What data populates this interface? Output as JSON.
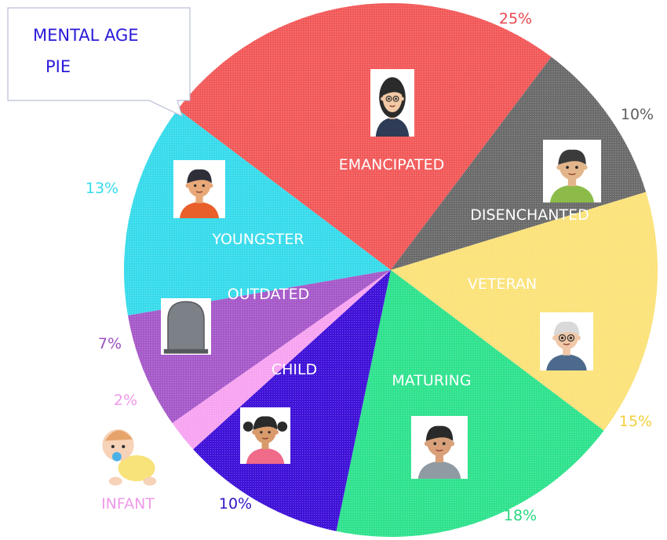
{
  "callout": {
    "line1": "MENTAL AGE",
    "line2": "PIE"
  },
  "chart_data": {
    "type": "pie",
    "slices": [
      {
        "label": "EMANCIPATED",
        "value": 25,
        "pct_label": "25%",
        "color": "#f25a5a",
        "pct_color": "#e8484f",
        "label_color": "#ffffff",
        "icon": "woman-glasses-avatar-icon"
      },
      {
        "label": "DISENCHANTED",
        "value": 10,
        "pct_label": "10%",
        "color": "#6b6b6b",
        "pct_color": "#5f5f5f",
        "label_color": "#ffffff",
        "icon": "old-man-green-sweater-avatar-icon"
      },
      {
        "label": "VETERAN",
        "value": 15,
        "pct_label": "15%",
        "color": "#fbe27a",
        "pct_color": "#f2cf3a",
        "label_color": "#ffffff",
        "icon": "grandpa-avatar-icon"
      },
      {
        "label": "MATURING",
        "value": 18,
        "pct_label": "18%",
        "color": "#2fe28d",
        "pct_color": "#27d780",
        "label_color": "#ffffff",
        "icon": "man-avatar-icon"
      },
      {
        "label": "CHILD",
        "value": 10,
        "pct_label": "10%",
        "color": "#3f12d8",
        "pct_color": "#3413c7",
        "label_color": "#ffffff",
        "icon": "girl-avatar-icon"
      },
      {
        "label": "INFANT",
        "value": 2,
        "pct_label": "2%",
        "color": "#f7a4f1",
        "pct_color": "#ef99e8",
        "label_color": "#ef99e8",
        "icon": "baby-crawling-icon"
      },
      {
        "label": "OUTDATED",
        "value": 7,
        "pct_label": "7%",
        "color": "#a659c9",
        "pct_color": "#9d4fc0",
        "label_color": "#ffffff",
        "icon": "rip-tombstone-icon"
      },
      {
        "label": "YOUNGSTER",
        "value": 13,
        "pct_label": "13%",
        "color": "#38dbeb",
        "pct_color": "#34dceb",
        "label_color": "#ffffff",
        "icon": "boy-avatar-icon"
      }
    ]
  }
}
